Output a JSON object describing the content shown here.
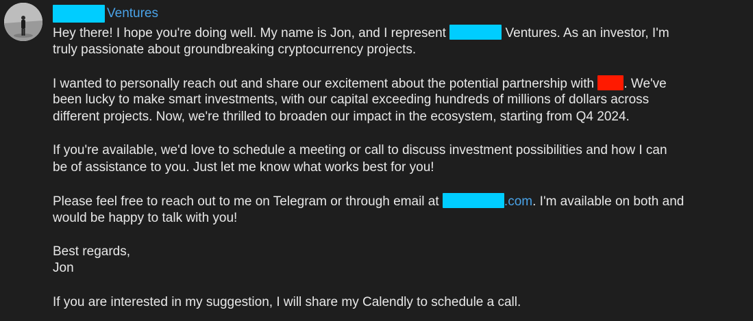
{
  "sender": {
    "name_suffix": "Ventures"
  },
  "message": {
    "p1": {
      "l1_before": "Hey there! I hope you're doing well. My name is Jon, and I represent",
      "l1_after": "Ventures. As an investor, I'm",
      "l2": "truly passionate about groundbreaking cryptocurrency projects."
    },
    "p2": {
      "l1_before": "I wanted to personally reach out and share our excitement about the potential partnership with",
      "l1_after": ". We've",
      "l2": "been lucky to make smart investments, with our capital exceeding hundreds of millions of dollars across",
      "l3": "different projects. Now, we're thrilled to broaden our impact in the ecosystem, starting from Q4 2024."
    },
    "p3": {
      "l1": "If you're available, we'd love to schedule a meeting or call to discuss investment possibilities and how I can",
      "l2": "be of assistance to you. Just let me know what works best for you!"
    },
    "p4": {
      "l1_before": "Please feel free to reach out to me on Telegram or through email at",
      "email_domain": ".com",
      "l1_after": ". I'm available on both and",
      "l2": "would be happy to talk with you!"
    },
    "p5": {
      "l1": "Best regards,",
      "l2": "Jon"
    },
    "p6": {
      "l1": "If you are interested in my suggestion, I will share my Calendly to schedule a call."
    }
  },
  "colors": {
    "background": "#1e1e1e",
    "text": "#e8e8e8",
    "link": "#4aa3e8",
    "redaction_cyan": "#00cdff",
    "redaction_red": "#ff1a00"
  }
}
